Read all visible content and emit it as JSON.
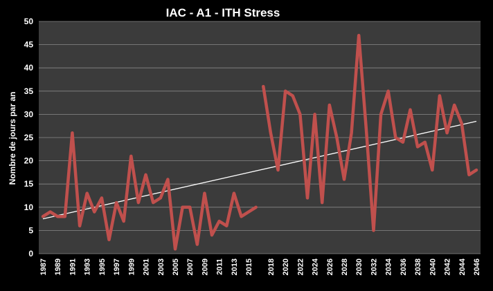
{
  "chart_data": {
    "type": "line",
    "title": "IAC - A1 - ITH Stress",
    "xlabel": "",
    "ylabel": "Nombre de jours par an",
    "ylim": [
      0,
      50
    ],
    "yticks": [
      0,
      5,
      10,
      15,
      20,
      25,
      30,
      35,
      40,
      45,
      50
    ],
    "x_range": [
      1987,
      2046
    ],
    "xticks": [
      1987,
      1989,
      1991,
      1993,
      1995,
      1997,
      1999,
      2001,
      2003,
      2005,
      2007,
      2009,
      2011,
      2013,
      2015,
      2018,
      2020,
      2022,
      2024,
      2026,
      2028,
      2030,
      2032,
      2034,
      2036,
      2038,
      2040,
      2042,
      2044,
      2046
    ],
    "grid": true,
    "legend": "none",
    "colors": {
      "background": "#000000",
      "plot_area": "#3b3b3b",
      "series": "#c0504d",
      "trend": "#ffffff"
    },
    "series": [
      {
        "segments": [
          {
            "x": [
              1987,
              1988,
              1989,
              1990,
              1991,
              1992,
              1993,
              1994,
              1995,
              1996,
              1997,
              1998,
              1999,
              2000,
              2001,
              2002,
              2003,
              2004,
              2005,
              2006,
              2007,
              2008,
              2009,
              2010,
              2011,
              2012,
              2013,
              2014,
              2015,
              2016
            ],
            "y": [
              8,
              9,
              8,
              8,
              26,
              6,
              13,
              9,
              12,
              3,
              11,
              7,
              21,
              11,
              17,
              11,
              12,
              16,
              1,
              10,
              10,
              2,
              13,
              4,
              7,
              6,
              13,
              8,
              9,
              10
            ]
          },
          {
            "x": [
              2017,
              2018,
              2019,
              2020,
              2021,
              2022,
              2023,
              2024,
              2025,
              2026,
              2027,
              2028,
              2029,
              2030,
              2031,
              2032,
              2033,
              2034,
              2035,
              2036,
              2037,
              2038,
              2039,
              2040,
              2041,
              2042,
              2043,
              2044,
              2045,
              2046
            ],
            "y": [
              36,
              26,
              18,
              35,
              34,
              30,
              12,
              30,
              11,
              32,
              25,
              16,
              26,
              47,
              27,
              5,
              30,
              35,
              25,
              24,
              31,
              23,
              24,
              18,
              34,
              26,
              32,
              28,
              17,
              18
            ]
          }
        ]
      },
      {
        "trendline": {
          "x": [
            1987,
            2046
          ],
          "y": [
            7.5,
            28.5
          ]
        }
      }
    ]
  }
}
